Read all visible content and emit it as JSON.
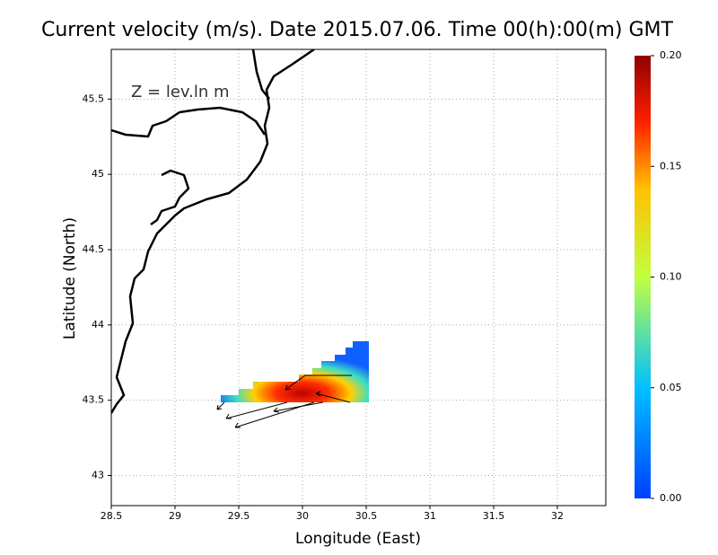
{
  "chart_data": {
    "type": "map",
    "title": "Current velocity (m/s). Date 2015.07.06. Time 00(h):00(m) GMT",
    "x_label": "Longitude (East)",
    "y_label": "Latitude (North)",
    "annotation": "Z = lev.ln m",
    "xlim": [
      28.5,
      32.38
    ],
    "ylim": [
      42.8,
      45.83
    ],
    "xticks": [
      28.5,
      29,
      29.5,
      30,
      30.5,
      31,
      31.5,
      32
    ],
    "yticks": [
      43,
      43.5,
      44,
      44.5,
      45,
      45.5
    ],
    "grid": true,
    "colorbar_lim": [
      0,
      0.2
    ],
    "colorbar_ticks": [
      {
        "value": 0,
        "label": "0.00"
      },
      {
        "value": 0.05,
        "label": "0.05"
      },
      {
        "value": 0.1,
        "label": "0.10"
      },
      {
        "value": 0.15,
        "label": "0.15"
      },
      {
        "value": 0.2,
        "label": "0.20"
      }
    ]
  }
}
